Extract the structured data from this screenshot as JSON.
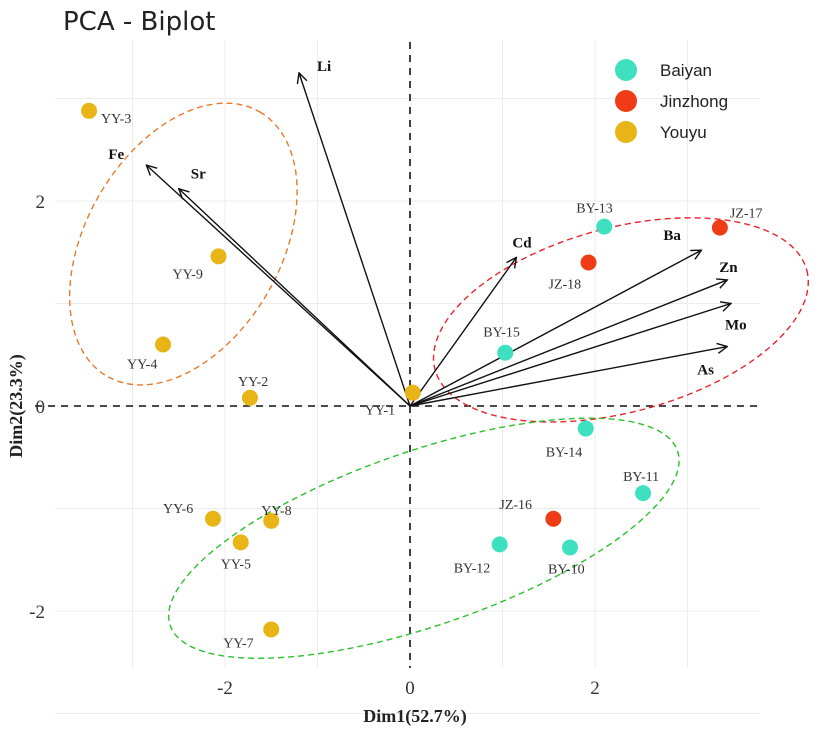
{
  "chart_data": {
    "type": "scatter",
    "title": "PCA - Biplot",
    "xlabel": "Dim1(52.7%)",
    "ylabel": "Dim2(23.3%)",
    "xlim": [
      -3.5,
      3.8
    ],
    "ylim": [
      -2.55,
      3.3
    ],
    "xticks": [
      -2,
      0,
      2
    ],
    "yticks": [
      -2,
      0,
      2
    ],
    "grid": true,
    "legend_position": "top-right",
    "colors": {
      "Baiyan": "#3ee0c0",
      "Jinzhong": "#f03c16",
      "Youyu": "#e8b416"
    },
    "groups": [
      {
        "name": "Baiyan",
        "points": [
          {
            "label": "BY-13",
            "x": 2.1,
            "y": 1.75
          },
          {
            "label": "BY-15",
            "x": 1.03,
            "y": 0.52
          },
          {
            "label": "BY-14",
            "x": 1.9,
            "y": -0.22
          },
          {
            "label": "BY-11",
            "x": 2.52,
            "y": -0.85
          },
          {
            "label": "BY-12",
            "x": 0.97,
            "y": -1.35
          },
          {
            "label": "BY-10",
            "x": 1.73,
            "y": -1.38
          }
        ]
      },
      {
        "name": "Jinzhong",
        "points": [
          {
            "label": "JZ-17",
            "x": 3.35,
            "y": 1.74
          },
          {
            "label": "JZ-18",
            "x": 1.93,
            "y": 1.4
          },
          {
            "label": "JZ-16",
            "x": 1.55,
            "y": -1.1
          }
        ]
      },
      {
        "name": "Youyu",
        "points": [
          {
            "label": "YY-3",
            "x": -3.47,
            "y": 2.88
          },
          {
            "label": "YY-9",
            "x": -2.07,
            "y": 1.46
          },
          {
            "label": "YY-4",
            "x": -2.67,
            "y": 0.6
          },
          {
            "label": "YY-2",
            "x": -1.73,
            "y": 0.08
          },
          {
            "label": "YY-1",
            "x": 0.03,
            "y": 0.13
          },
          {
            "label": "YY-6",
            "x": -2.13,
            "y": -1.1
          },
          {
            "label": "YY-8",
            "x": -1.5,
            "y": -1.12
          },
          {
            "label": "YY-5",
            "x": -1.83,
            "y": -1.33
          },
          {
            "label": "YY-7",
            "x": -1.5,
            "y": -2.18
          }
        ]
      }
    ],
    "vectors": [
      {
        "name": "Li",
        "x": -1.2,
        "y": 3.25
      },
      {
        "name": "Fe",
        "x": -2.85,
        "y": 2.35
      },
      {
        "name": "Sr",
        "x": -2.5,
        "y": 2.12
      },
      {
        "name": "Cd",
        "x": 1.15,
        "y": 1.45
      },
      {
        "name": "Ba",
        "x": 3.15,
        "y": 1.52
      },
      {
        "name": "Zn",
        "x": 3.43,
        "y": 1.23
      },
      {
        "name": "Mo",
        "x": 3.47,
        "y": 1.0
      },
      {
        "name": "As",
        "x": 3.43,
        "y": 0.58
      }
    ],
    "ellipses": [
      {
        "group": "Youyu",
        "color": "#e87a2c",
        "cx": -2.45,
        "cy": 1.58,
        "rx": 1.65,
        "ry": 0.95,
        "angle_deg": 60
      },
      {
        "group": "Jinzhong",
        "color": "#e8242c",
        "cx": 2.28,
        "cy": 0.84,
        "rx": 2.08,
        "ry": 0.9,
        "angle_deg": 15
      },
      {
        "group": "Baiyan",
        "color": "#2cc02c",
        "cx": 0.15,
        "cy": -1.29,
        "rx": 2.9,
        "ry": 0.85,
        "angle_deg": 19
      }
    ]
  }
}
